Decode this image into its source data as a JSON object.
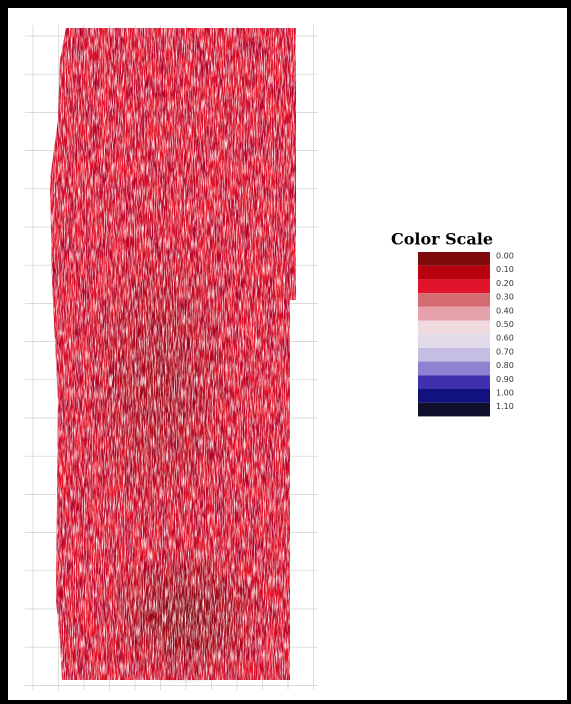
{
  "legend": {
    "title": "Color Scale",
    "items": [
      {
        "label": "0.00",
        "color": "#7e0a0c"
      },
      {
        "label": "0.10",
        "color": "#b8000e"
      },
      {
        "label": "0.20",
        "color": "#e0142a"
      },
      {
        "label": "0.30",
        "color": "#d46a72"
      },
      {
        "label": "0.40",
        "color": "#e6a2aa"
      },
      {
        "label": "0.50",
        "color": "#efdbdf"
      },
      {
        "label": "0.60",
        "color": "#e2dcea"
      },
      {
        "label": "0.70",
        "color": "#c6bee2"
      },
      {
        "label": "0.80",
        "color": "#8f80d2"
      },
      {
        "label": "0.90",
        "color": "#3f30b0"
      },
      {
        "label": "1.00",
        "color": "#12127e"
      },
      {
        "label": "1.10",
        "color": "#10102c"
      }
    ]
  }
}
